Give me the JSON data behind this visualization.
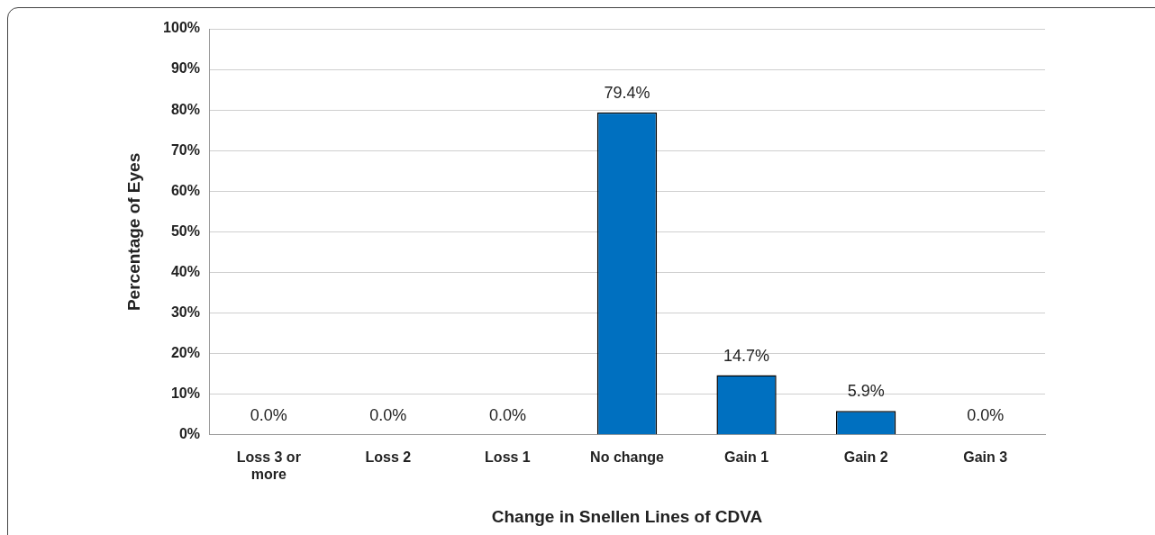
{
  "chart_data": {
    "type": "bar",
    "xlabel": "Change in Snellen Lines of CDVA",
    "ylabel": "Percentage of Eyes",
    "categories": [
      "Loss 3 or more",
      "Loss 2",
      "Loss 1",
      "No change",
      "Gain 1",
      "Gain 2",
      "Gain 3"
    ],
    "values": [
      0.0,
      0.0,
      0.0,
      79.4,
      14.7,
      5.9,
      0.0
    ],
    "value_labels": [
      "0.0%",
      "0.0%",
      "0.0%",
      "79.4%",
      "14.7%",
      "5.9%",
      "0.0%"
    ],
    "color": "#0070c0",
    "ylim": [
      0,
      100
    ],
    "yticks": [
      {
        "value": 0,
        "label": "0%"
      },
      {
        "value": 10,
        "label": "10%"
      },
      {
        "value": 20,
        "label": "20%"
      },
      {
        "value": 30,
        "label": "30%"
      },
      {
        "value": 40,
        "label": "40%"
      },
      {
        "value": 50,
        "label": "50%"
      },
      {
        "value": 60,
        "label": "60%"
      },
      {
        "value": 70,
        "label": "70%"
      },
      {
        "value": 80,
        "label": "80%"
      },
      {
        "value": 90,
        "label": "90%"
      },
      {
        "value": 100,
        "label": "100%"
      }
    ],
    "grid": "y",
    "legend": false
  }
}
